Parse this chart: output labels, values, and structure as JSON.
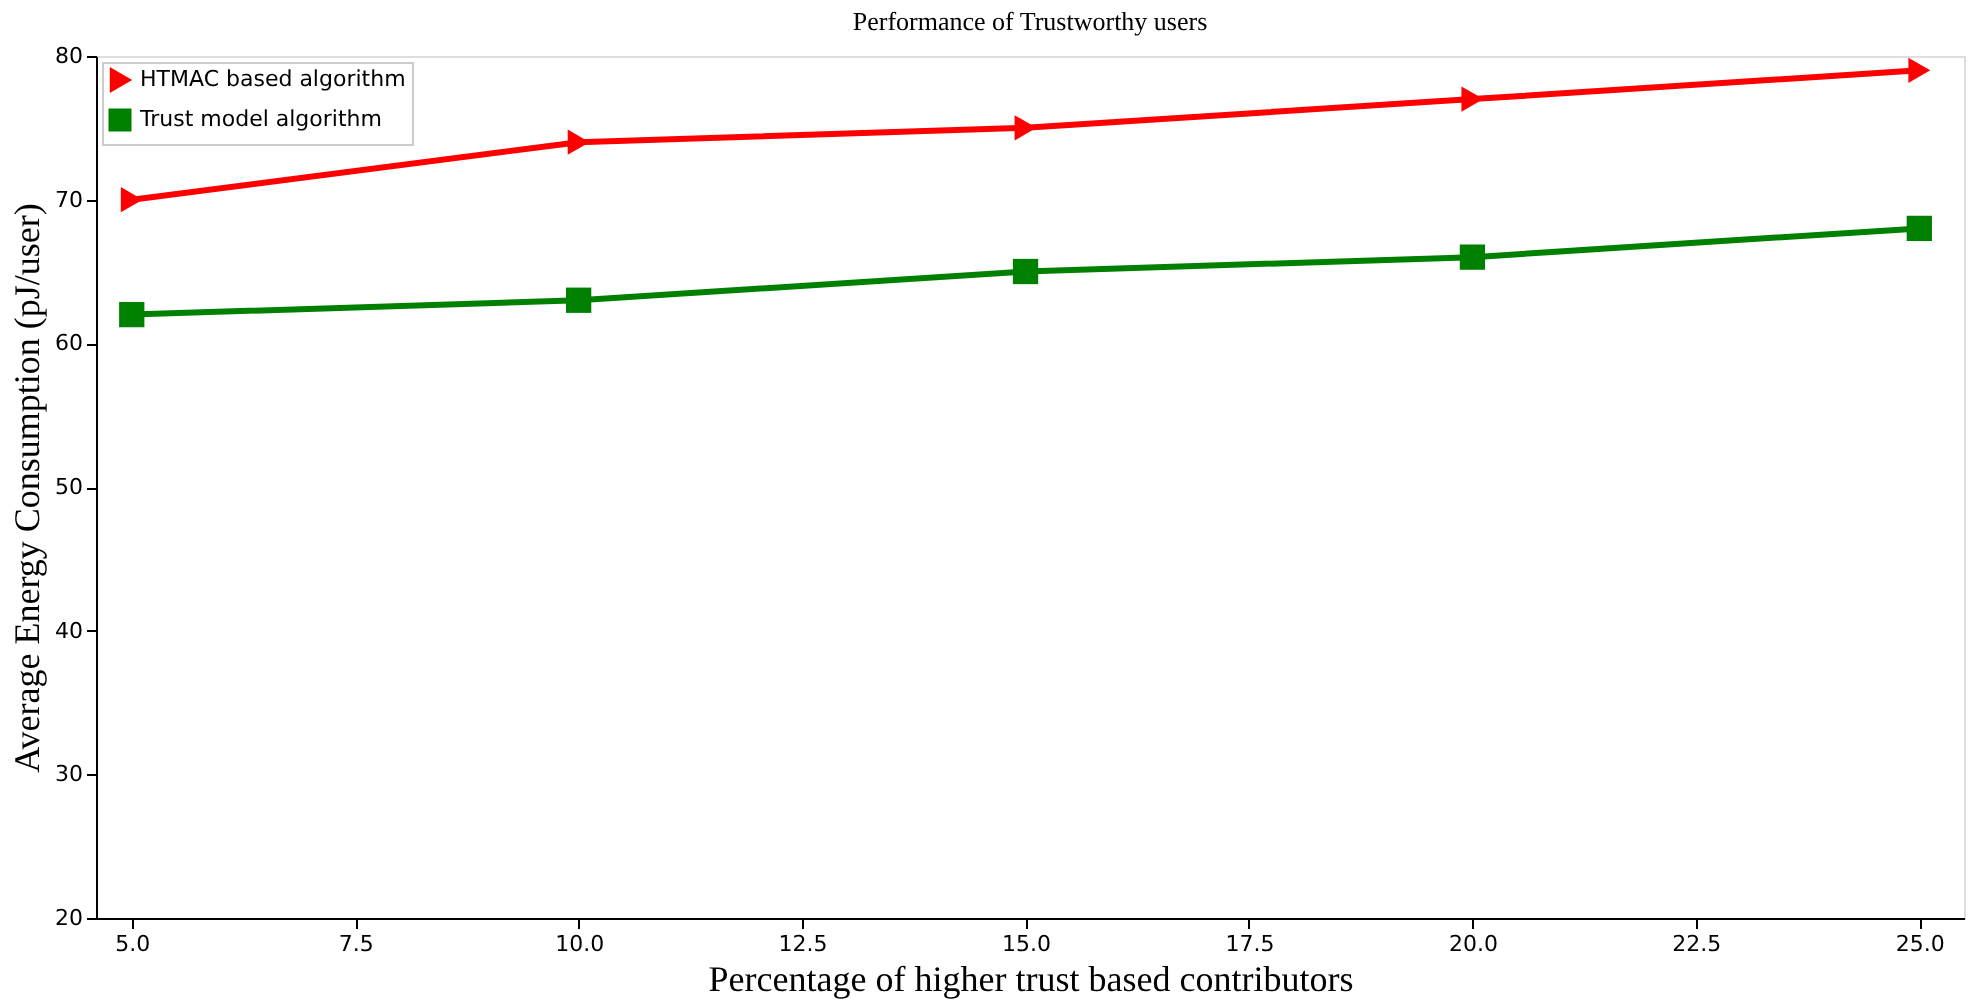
{
  "chart_data": {
    "type": "line",
    "title": "Performance of Trustworthy users",
    "xlabel": "Percentage of higher trust based contributors",
    "ylabel": "Average Energy Consumption (pJ/user)",
    "x": [
      5,
      10,
      15,
      20,
      25
    ],
    "series": [
      {
        "name": "HTMAC based algorithm",
        "color": "#ff0000",
        "marker": "triangle",
        "values": [
          70,
          74,
          75,
          77,
          79
        ]
      },
      {
        "name": "Trust model algorithm",
        "color": "#008000",
        "marker": "square",
        "values": [
          62,
          63,
          65,
          66,
          68
        ]
      }
    ],
    "xlim": [
      4.6,
      25.5
    ],
    "xticks": [
      {
        "value": 5,
        "label": "5.0"
      },
      {
        "value": 7.5,
        "label": "7.5"
      },
      {
        "value": 10,
        "label": "10.0"
      },
      {
        "value": 12.5,
        "label": "12.5"
      },
      {
        "value": 15,
        "label": "15.0"
      },
      {
        "value": 17.5,
        "label": "17.5"
      },
      {
        "value": 20,
        "label": "20.0"
      },
      {
        "value": 22.5,
        "label": "22.5"
      },
      {
        "value": 25,
        "label": "25.0"
      }
    ],
    "ylim": [
      20,
      80
    ],
    "yticks": [
      20,
      30,
      40,
      50,
      60,
      70,
      80
    ],
    "grid": false,
    "legend": "top left",
    "line_style": "solid"
  }
}
